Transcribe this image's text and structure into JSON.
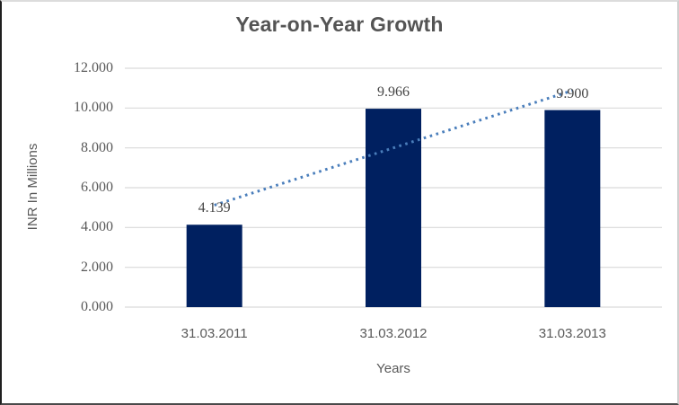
{
  "colors": {
    "bar": "#002060",
    "trendline": "#4a7ebb",
    "gridline": "#d9d9d9",
    "tick_text": "#595959",
    "title_text": "#545454"
  },
  "chart_data": {
    "type": "bar",
    "title": "Year-on-Year Growth",
    "xlabel": "Years",
    "ylabel": "INR In Millions",
    "categories": [
      "31.03.2011",
      "31.03.2012",
      "31.03.2013"
    ],
    "values": [
      4.139,
      9.966,
      9.9
    ],
    "data_labels": [
      "4.139",
      "9.966",
      "9.900"
    ],
    "yticks": [
      "0.000",
      "2.000",
      "4.000",
      "6.000",
      "8.000",
      "10.000",
      "12.000"
    ],
    "ytick_step": 2,
    "ylim": [
      0,
      12
    ],
    "grid": true,
    "legend": false,
    "trendline": {
      "type": "linear",
      "style": "dotted",
      "color": "#4a7ebb",
      "start_value": 5.12,
      "end_value": 10.88
    }
  }
}
